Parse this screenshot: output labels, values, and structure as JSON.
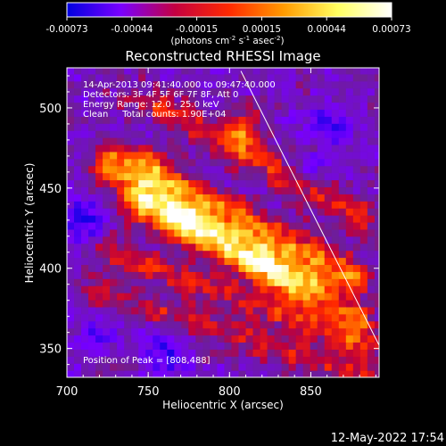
{
  "colorbar": {
    "ticks": [
      "-0.00073",
      "-0.00044",
      "-0.00015",
      "0.00015",
      "0.00044",
      "0.00073"
    ],
    "units_main": "(photons cm",
    "units_sup1": "-2",
    "units_mid": " s",
    "units_sup2": "-1",
    "units_mid2": " asec",
    "units_sup3": "-2",
    "units_end": ")",
    "colors": [
      "#0000e0",
      "#7a00ff",
      "#c40040",
      "#ff2a00",
      "#ff9a00",
      "#ffff60",
      "#ffffff"
    ]
  },
  "chart_data": {
    "type": "heatmap",
    "title": "Reconstructed RHESSI Image",
    "xlabel": "Heliocentric X (arcsec)",
    "ylabel": "Heliocentric Y (arcsec)",
    "xlim": [
      700,
      892
    ],
    "ylim": [
      332,
      525
    ],
    "xticks": [
      700,
      750,
      800,
      850
    ],
    "yticks": [
      350,
      400,
      450,
      500
    ],
    "value_range": [
      -0.00073,
      0.00073
    ],
    "annotations": [
      "14-Apr-2013 09:41:40.000 to 09:47:40.000",
      "Detectors: 3F 4F 5F 6F 7F 8F, Att 0",
      "Energy Range: 12.0 - 25.0 keV",
      "Clean     Total counts: 1.90E+04"
    ],
    "peak_label": "Position of Peak = [808,488]",
    "peak": [
      808,
      488
    ],
    "limb_line": [
      [
        807,
        523
      ],
      [
        892,
        352
      ]
    ],
    "emission_bands": [
      {
        "p1": [
          758,
          500
        ],
        "p2": [
          880,
          432
        ],
        "width": 7,
        "amp": 0.5
      },
      {
        "p1": [
          730,
          470
        ],
        "p2": [
          875,
          395
        ],
        "width": 8,
        "amp": 0.75
      },
      {
        "p1": [
          722,
          458
        ],
        "p2": [
          848,
          392
        ],
        "width": 6,
        "amp": 0.45
      },
      {
        "p1": [
          745,
          440
        ],
        "p2": [
          878,
          368
        ],
        "width": 8,
        "amp": 0.7
      },
      {
        "p1": [
          725,
          412
        ],
        "p2": [
          885,
          350
        ],
        "width": 6,
        "amp": 0.45
      },
      {
        "p1": [
          720,
          385
        ],
        "p2": [
          885,
          333
        ],
        "width": 7,
        "amp": 0.4
      }
    ],
    "hot_spots": [
      {
        "x": 808,
        "y": 488,
        "r": 9,
        "amp": 0.6
      },
      {
        "x": 772,
        "y": 432,
        "r": 11,
        "amp": 0.35
      },
      {
        "x": 750,
        "y": 465,
        "r": 8,
        "amp": 0.25
      },
      {
        "x": 738,
        "y": 508,
        "r": 7,
        "amp": 0.3
      },
      {
        "x": 820,
        "y": 404,
        "r": 9,
        "amp": 0.25
      }
    ],
    "cold_spots": [
      {
        "x": 760,
        "y": 348,
        "r": 10,
        "amp": -0.55
      },
      {
        "x": 712,
        "y": 430,
        "r": 9,
        "amp": -0.5
      },
      {
        "x": 862,
        "y": 488,
        "r": 8,
        "amp": -0.5
      },
      {
        "x": 720,
        "y": 360,
        "r": 8,
        "amp": -0.4
      },
      {
        "x": 850,
        "y": 458,
        "r": 7,
        "amp": -0.35
      }
    ]
  },
  "timestamp": "12-May-2022 17:54"
}
